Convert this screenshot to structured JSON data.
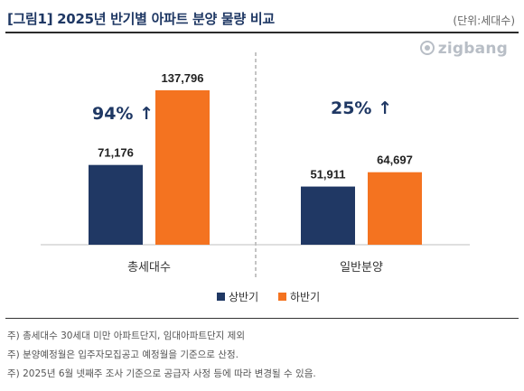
{
  "header": {
    "title": "[그림1] 2025년 반기별 아파트 분양 물량 비교",
    "unit": "(단위:세대수)",
    "logo_text": "zigbang"
  },
  "chart_data": {
    "type": "bar",
    "categories": [
      "총세대수",
      "일반분양"
    ],
    "series": [
      {
        "name": "상반기",
        "color": "#203864",
        "values": [
          71176,
          51911
        ],
        "labels": [
          "71,176",
          "51,911"
        ]
      },
      {
        "name": "하반기",
        "color": "#f47320",
        "values": [
          137796,
          64697
        ],
        "labels": [
          "137,796",
          "64,697"
        ]
      }
    ],
    "annotations": [
      "94% ↑",
      "25% ↑"
    ],
    "annotation_color": "#1f3864",
    "legend_position": "bottom",
    "ylim": [
      0,
      150000
    ],
    "grid": false,
    "title": "",
    "xlabel": "",
    "ylabel": ""
  },
  "footnotes": [
    "주) 총세대수 30세대 미만 아파트단지, 임대아파트단지 제외",
    "주) 분양예정월은 입주자모집공고 예정월을 기준으로 산정.",
    "주) 2025년 6월 넷째주 조사 기준으로 공급자 사정 등에 따라 변경될 수 있음."
  ]
}
